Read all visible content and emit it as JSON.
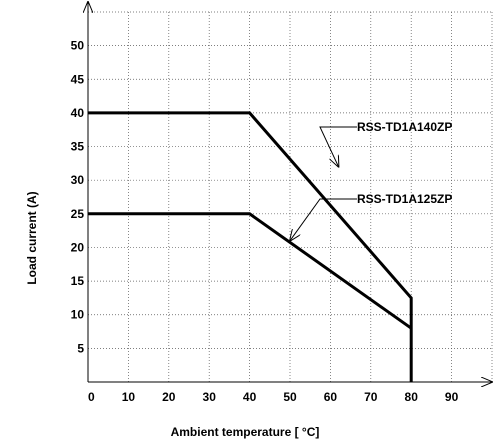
{
  "chart_data": {
    "type": "line",
    "title": "",
    "xlabel": "Ambient  temperature [ °C]",
    "ylabel": "Load current (A)",
    "xlim": [
      0,
      100
    ],
    "ylim": [
      0,
      55
    ],
    "grid": true,
    "x_ticks": [
      "0",
      "10",
      "20",
      "30",
      "40",
      "50",
      "60",
      "70",
      "80",
      "90"
    ],
    "y_ticks": [
      "5",
      "10",
      "15",
      "20",
      "25",
      "30",
      "35",
      "40",
      "45",
      "50"
    ],
    "series": [
      {
        "name": "RSS-TD1A140ZP",
        "points": [
          [
            0,
            40
          ],
          [
            40,
            40
          ],
          [
            80,
            12.5
          ],
          [
            80,
            0
          ]
        ]
      },
      {
        "name": "RSS-TD1A125ZP",
        "points": [
          [
            0,
            25
          ],
          [
            40,
            25
          ],
          [
            80,
            8
          ]
        ]
      }
    ],
    "annotations": [
      {
        "text": "RSS-TD1A140ZP",
        "target": [
          62,
          32
        ]
      },
      {
        "text": "RSS-TD1A125ZP",
        "target": [
          50,
          21
        ]
      }
    ]
  }
}
